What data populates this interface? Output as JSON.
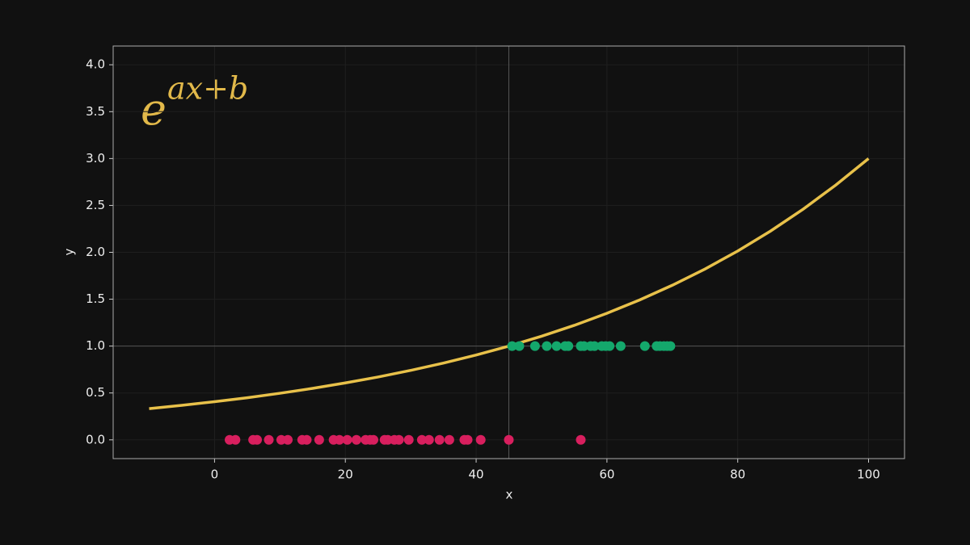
{
  "chart_data": {
    "type": "line",
    "annotation": {
      "base": "e",
      "exponent": "ax+b"
    },
    "xlabel": "x",
    "ylabel": "y",
    "xlim": [
      -15.5,
      105.5
    ],
    "ylim": [
      -0.2,
      4.2
    ],
    "xticks": [
      0,
      20,
      40,
      60,
      80,
      100
    ],
    "yticks": [
      {
        "value": 0,
        "label": "0.0"
      },
      {
        "value": 0.5,
        "label": "0.5"
      },
      {
        "value": 1,
        "label": "1.0"
      },
      {
        "value": 1.5,
        "label": "1.5"
      },
      {
        "value": 2,
        "label": "2.0"
      },
      {
        "value": 2.5,
        "label": "2.5"
      },
      {
        "value": 3,
        "label": "3.0"
      },
      {
        "value": 3.5,
        "label": "3.5"
      },
      {
        "value": 4,
        "label": "4.0"
      }
    ],
    "grid": true,
    "vlines": [
      45
    ],
    "hlines": [
      1
    ],
    "ref_color": "#555555",
    "series": [
      {
        "type": "line",
        "color": "#e8c14a",
        "x": [
          -10,
          -5,
          0,
          5,
          10,
          15,
          20,
          25,
          30,
          35,
          40,
          45,
          50,
          55,
          60,
          65,
          70,
          75,
          80,
          85,
          90,
          95,
          100
        ],
        "values": [
          0.333,
          0.368,
          0.407,
          0.449,
          0.497,
          0.549,
          0.607,
          0.67,
          0.741,
          0.819,
          0.905,
          1.0,
          1.105,
          1.221,
          1.35,
          1.492,
          1.649,
          1.822,
          2.014,
          2.226,
          2.46,
          2.718,
          3.0
        ]
      },
      {
        "type": "scatter",
        "color": "#d81f5e",
        "x": [
          2.3,
          3.2,
          5.9,
          6.5,
          8.3,
          10.2,
          11.2,
          13.4,
          14.1,
          16.0,
          18.2,
          19.1,
          20.3,
          21.7,
          23.1,
          23.8,
          24.3,
          26.0,
          26.5,
          27.5,
          28.2,
          29.7,
          31.7,
          32.8,
          34.4,
          35.9,
          38.2,
          38.7,
          40.7,
          45.0,
          56.0
        ],
        "values": [
          0,
          0,
          0,
          0,
          0,
          0,
          0,
          0,
          0,
          0,
          0,
          0,
          0,
          0,
          0,
          0,
          0,
          0,
          0,
          0,
          0,
          0,
          0,
          0,
          0,
          0,
          0,
          0,
          0,
          0,
          0
        ]
      },
      {
        "type": "scatter",
        "color": "#14a86c",
        "x": [
          45.5,
          46.6,
          49.0,
          50.8,
          52.3,
          53.6,
          54.1,
          56.0,
          56.5,
          57.5,
          58.1,
          59.2,
          59.8,
          60.4,
          62.1,
          65.8,
          67.6,
          68.1,
          68.7,
          69.2,
          69.7
        ],
        "values": [
          1,
          1,
          1,
          1,
          1,
          1,
          1,
          1,
          1,
          1,
          1,
          1,
          1,
          1,
          1,
          1,
          1,
          1,
          1,
          1,
          1
        ]
      }
    ]
  }
}
